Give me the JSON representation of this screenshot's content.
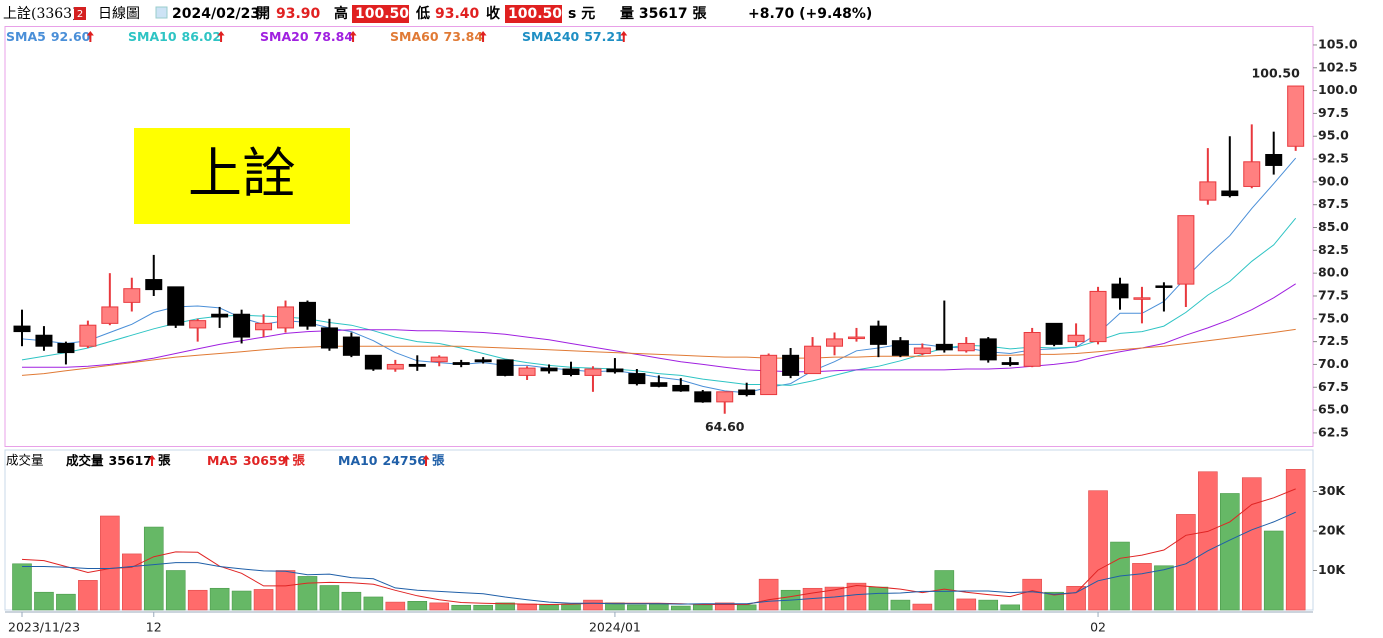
{
  "header": {
    "name": "上詮(3363)",
    "badge": "2",
    "chart_kind": "日線圖",
    "date": "2024/02/23",
    "open_label": "開",
    "open": "93.90",
    "high_label": "高",
    "high": "100.50",
    "low_label": "低",
    "low": "93.40",
    "close_label": "收",
    "close": "100.50",
    "currency": "s 元",
    "volume_text": "量 35617 張",
    "change": "+8.70 (+9.48%)"
  },
  "chart_data": [
    {
      "type": "candlestick",
      "watermark": "上詮",
      "categories": [
        "2023/11/23",
        null,
        null,
        null,
        null,
        null,
        "12",
        null,
        null,
        null,
        null,
        null,
        null,
        null,
        null,
        null,
        null,
        null,
        null,
        null,
        null,
        null,
        null,
        null,
        null,
        null,
        null,
        "2024/01",
        null,
        null,
        null,
        null,
        null,
        null,
        null,
        null,
        null,
        null,
        null,
        null,
        null,
        null,
        null,
        null,
        null,
        null,
        null,
        null,
        null,
        "02",
        null,
        null,
        null,
        null,
        null,
        null,
        null,
        null,
        null
      ],
      "open": [
        74.2,
        73.2,
        72.3,
        72,
        74.5,
        76.8,
        79.3,
        78.5,
        74,
        75.5,
        75.5,
        73.8,
        74,
        76.8,
        74,
        73,
        71,
        69.5,
        70,
        70.3,
        70.2,
        70.5,
        70.5,
        68.8,
        69.6,
        69.5,
        68.8,
        69.5,
        69,
        68,
        67.7,
        67,
        65.9,
        67.2,
        66.7,
        71,
        69,
        72,
        73,
        74.2,
        72.6,
        71.2,
        72.2,
        71.5,
        72.8,
        70.2,
        69.8,
        74.5,
        72.5,
        72.5,
        78.8,
        77.3,
        78.6,
        78.8,
        88,
        89,
        89.5,
        93,
        93.9
      ],
      "high": [
        76,
        74.2,
        72.5,
        74.8,
        80,
        79.5,
        82,
        78.5,
        75,
        76.3,
        76,
        75.5,
        77,
        77,
        75,
        73.5,
        71,
        70.5,
        71,
        71,
        70.5,
        70.8,
        70.5,
        69.8,
        70,
        70.3,
        69.8,
        70.7,
        69.5,
        68.8,
        68.5,
        67.2,
        67,
        68,
        71.2,
        71.8,
        73,
        73.5,
        74,
        74.8,
        73,
        72.3,
        77,
        73,
        73,
        70.8,
        74,
        74.5,
        74.5,
        78.5,
        79.5,
        78.5,
        79,
        86.3,
        93.7,
        95,
        96.3,
        95.5,
        100.5
      ],
      "low": [
        72,
        71.5,
        70,
        71.8,
        74.3,
        75.8,
        77.5,
        74,
        72.5,
        74,
        72.3,
        73,
        73.5,
        73.8,
        71.5,
        70.8,
        69.3,
        69.2,
        69.3,
        69.8,
        69.7,
        70.1,
        68.7,
        68.3,
        69,
        68.7,
        67,
        69,
        67.7,
        67.5,
        67,
        65.8,
        64.6,
        66.5,
        66.7,
        68.5,
        69,
        71,
        72.5,
        70.8,
        70.8,
        71,
        71.3,
        71.3,
        70.2,
        69.8,
        69.7,
        72,
        72,
        72.2,
        76,
        74.5,
        75.8,
        76.3,
        87.5,
        88.3,
        89.3,
        90.8,
        93.4
      ],
      "close": [
        73.6,
        72,
        71.3,
        74.3,
        76.3,
        78.3,
        78.2,
        74.3,
        74.8,
        75.2,
        73,
        74.5,
        76.3,
        74.2,
        71.8,
        71,
        69.5,
        70,
        69.8,
        70.8,
        70,
        70.3,
        68.8,
        69.6,
        69.3,
        68.9,
        69.5,
        69.2,
        67.9,
        67.6,
        67.1,
        65.9,
        67,
        66.7,
        71,
        68.8,
        72,
        72.8,
        73,
        72.2,
        71,
        71.8,
        71.6,
        72.3,
        70.5,
        70,
        73.5,
        72.2,
        73.2,
        78,
        77.3,
        77.3,
        78.5,
        86.3,
        90,
        88.5,
        92.2,
        91.8,
        100.5
      ],
      "up_color": "#ff8080",
      "up_edge": "#e8383d",
      "down_color": "#000000",
      "high_annotation": "100.50",
      "low_annotation": "64.60",
      "ylim": [
        61,
        107
      ],
      "yticks": [
        {
          "value": 62.5,
          "label": "62.5"
        },
        {
          "value": 65,
          "label": "65.0"
        },
        {
          "value": 67.5,
          "label": "67.5"
        },
        {
          "value": 70,
          "label": "70.0"
        },
        {
          "value": 72.5,
          "label": "72.5"
        },
        {
          "value": 75,
          "label": "75.0"
        },
        {
          "value": 77.5,
          "label": "77.5"
        },
        {
          "value": 80,
          "label": "80.0"
        },
        {
          "value": 82.5,
          "label": "82.5"
        },
        {
          "value": 85,
          "label": "85.0"
        },
        {
          "value": 87.5,
          "label": "87.5"
        },
        {
          "value": 90,
          "label": "90.0"
        },
        {
          "value": 92.5,
          "label": "92.5"
        },
        {
          "value": 95,
          "label": "95.0"
        },
        {
          "value": 97.5,
          "label": "97.5"
        },
        {
          "value": 100,
          "label": "100.0"
        },
        {
          "value": 102.5,
          "label": "102.5"
        },
        {
          "value": 105,
          "label": "105.0"
        }
      ],
      "series": [
        {
          "name": "SMA5",
          "value_label": "92.60",
          "color": "#4a8fd8",
          "values": [
            72.8,
            72.6,
            72.3,
            72.6,
            73.5,
            74.4,
            75.7,
            76.3,
            76.4,
            76.2,
            75.1,
            74.4,
            74.8,
            74.6,
            74.0,
            73.6,
            72.6,
            71.3,
            70.4,
            70.2,
            70.0,
            70.2,
            69.9,
            69.9,
            69.6,
            69.4,
            69.2,
            69.3,
            69.0,
            68.6,
            68.3,
            67.6,
            67.1,
            66.9,
            67.5,
            67.9,
            69.3,
            70.3,
            71.5,
            71.8,
            72.2,
            72.2,
            71.9,
            71.8,
            71.4,
            71.2,
            71.6,
            71.7,
            71.9,
            73.4,
            75.6,
            75.6,
            76.9,
            79.5,
            81.9,
            84.1,
            87.1,
            89.8,
            92.6
          ]
        },
        {
          "name": "SMA10",
          "value_label": "86.02",
          "color": "#2ec4c4",
          "values": [
            70.5,
            70.9,
            71.3,
            71.8,
            72.5,
            73.2,
            73.9,
            74.5,
            75.0,
            75.3,
            75.4,
            75.3,
            75.2,
            75.0,
            74.6,
            74.3,
            73.7,
            73.0,
            72.5,
            72.3,
            71.8,
            71.2,
            70.6,
            70.2,
            69.9,
            69.7,
            69.6,
            69.5,
            69.3,
            69.0,
            68.8,
            68.4,
            68.1,
            67.8,
            67.8,
            67.7,
            68.2,
            68.8,
            69.4,
            69.8,
            70.4,
            71.1,
            71.8,
            72.1,
            72.0,
            71.7,
            71.9,
            71.8,
            71.9,
            72.6,
            73.4,
            73.6,
            74.2,
            75.7,
            77.6,
            79.1,
            81.3,
            83.1,
            86.02
          ]
        },
        {
          "name": "SMA20",
          "value_label": "78.84",
          "color": "#a020e0",
          "values": [
            69.7,
            69.7,
            69.7,
            69.8,
            70.0,
            70.3,
            70.7,
            71.2,
            71.7,
            72.2,
            72.6,
            73.0,
            73.4,
            73.6,
            73.7,
            73.8,
            73.8,
            73.8,
            73.7,
            73.7,
            73.6,
            73.5,
            73.3,
            73.0,
            72.7,
            72.3,
            71.9,
            71.5,
            71.1,
            70.7,
            70.3,
            70.0,
            69.7,
            69.4,
            69.3,
            69.2,
            69.2,
            69.3,
            69.4,
            69.4,
            69.4,
            69.4,
            69.4,
            69.5,
            69.5,
            69.6,
            69.8,
            70.0,
            70.3,
            70.9,
            71.4,
            71.8,
            72.3,
            73.2,
            74.0,
            74.9,
            76.0,
            77.3,
            78.84
          ]
        },
        {
          "name": "SMA60",
          "value_label": "73.84",
          "color": "#e07a35",
          "values": [
            68.8,
            69.0,
            69.3,
            69.6,
            69.9,
            70.2,
            70.5,
            70.8,
            71.0,
            71.2,
            71.4,
            71.6,
            71.8,
            71.9,
            72.0,
            72.0,
            72.0,
            72.0,
            72.0,
            72.0,
            72.0,
            71.9,
            71.8,
            71.7,
            71.6,
            71.5,
            71.4,
            71.3,
            71.2,
            71.1,
            71.0,
            70.9,
            70.8,
            70.8,
            70.7,
            70.7,
            70.7,
            70.8,
            70.8,
            70.9,
            70.9,
            70.9,
            71.0,
            71.0,
            71.0,
            71.0,
            71.1,
            71.1,
            71.2,
            71.4,
            71.6,
            71.8,
            72.0,
            72.3,
            72.6,
            72.9,
            73.2,
            73.5,
            73.84
          ]
        },
        {
          "name": "SMA240",
          "value_label": "57.21",
          "color": "#1f8fc4"
        }
      ]
    },
    {
      "type": "bar",
      "title": "成交量",
      "legend_name": "成交量",
      "value_label": "35617",
      "unit": "張",
      "up_color": "#ff6b6b",
      "down_color": "#66b866",
      "values": [
        11700,
        4500,
        4000,
        7500,
        23800,
        14200,
        21000,
        10000,
        5000,
        5500,
        4800,
        5200,
        10000,
        8500,
        6200,
        4500,
        3300,
        2000,
        2200,
        1800,
        1200,
        1200,
        1800,
        1500,
        1300,
        1500,
        2500,
        1800,
        1300,
        1500,
        1000,
        1300,
        1800,
        1300,
        7800,
        5000,
        5500,
        5800,
        6800,
        5800,
        2500,
        1500,
        10000,
        2800,
        2500,
        1300,
        7800,
        4500,
        6000,
        30200,
        17200,
        11800,
        11200,
        24200,
        35000,
        29500,
        33500,
        20000,
        35617
      ],
      "ylim": [
        0,
        40000
      ],
      "yticks": [
        {
          "value": 10000,
          "label": "10K"
        },
        {
          "value": 20000,
          "label": "20K"
        },
        {
          "value": 30000,
          "label": "30K"
        }
      ],
      "series": [
        {
          "name": "MA5",
          "value_label": "30659",
          "color": "#e02424",
          "values": [
            12800,
            12500,
            11000,
            9500,
            10500,
            10800,
            13500,
            14700,
            14600,
            11100,
            9300,
            6100,
            6100,
            6800,
            7000,
            6900,
            6500,
            5000,
            3600,
            2600,
            1900,
            1700,
            1600,
            1500,
            1400,
            1500,
            1700,
            1700,
            1700,
            1700,
            1600,
            1400,
            1400,
            1400,
            2600,
            3400,
            4300,
            5100,
            6200,
            5800,
            5300,
            4400,
            5300,
            4500,
            3900,
            3400,
            4900,
            3800,
            4400,
            10100,
            13100,
            13900,
            15200,
            18900,
            19900,
            22300,
            26700,
            28400,
            30659
          ]
        },
        {
          "name": "MA10",
          "value_label": "24756",
          "color": "#1f5fa8",
          "values": [
            11000,
            11000,
            10800,
            10500,
            10500,
            11000,
            11500,
            12000,
            12000,
            11000,
            10400,
            9900,
            9800,
            8900,
            9100,
            8200,
            7900,
            5600,
            5000,
            4700,
            4400,
            4100,
            3300,
            2600,
            2000,
            1700,
            1700,
            1600,
            1600,
            1600,
            1500,
            1600,
            1600,
            1600,
            2200,
            2500,
            2900,
            3300,
            3900,
            4200,
            4300,
            4700,
            4700,
            4800,
            4800,
            4400,
            4600,
            4000,
            4400,
            7400,
            8600,
            9200,
            10200,
            11700,
            15000,
            17700,
            20300,
            22300,
            24756
          ]
        }
      ]
    }
  ]
}
